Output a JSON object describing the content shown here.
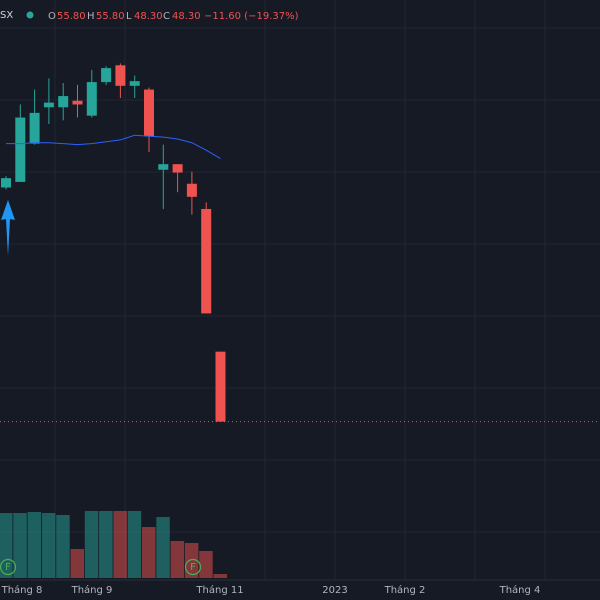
{
  "header": {
    "symbol": "SX",
    "o_label": "O",
    "o": "55.80",
    "h_label": "H",
    "h": "55.80",
    "l_label": "L",
    "l": "48.30",
    "c_label": "C",
    "c": "48.30",
    "change": "−11.60 (−19.37%)"
  },
  "chart_data": {
    "type": "candlestick",
    "open": [
      73.4,
      74.0,
      78.1,
      82.0,
      82.0,
      82.7,
      81.1,
      84.7,
      86.5,
      84.3,
      83.9,
      75.3,
      75.9,
      73.8,
      71.1,
      55.8
    ],
    "high": [
      74.6,
      82.3,
      83.9,
      85.1,
      84.6,
      84.4,
      86.0,
      86.4,
      86.7,
      85.4,
      84.1,
      78.0,
      75.9,
      75.1,
      71.8,
      55.8
    ],
    "low": [
      73.2,
      74.0,
      78.0,
      80.2,
      80.6,
      80.9,
      80.9,
      84.4,
      83.0,
      83.0,
      77.2,
      71.1,
      72.9,
      70.5,
      59.9,
      48.3
    ],
    "close": [
      74.4,
      80.9,
      81.4,
      82.5,
      83.2,
      82.3,
      84.7,
      86.2,
      84.3,
      84.8,
      78.9,
      75.9,
      75.0,
      72.4,
      59.9,
      48.3
    ],
    "ma": [
      78.1,
      78.1,
      78.2,
      78.2,
      78.1,
      78.0,
      78.1,
      78.3,
      78.5,
      79.0,
      78.9,
      78.8,
      78.6,
      78.2,
      77.4,
      76.5
    ],
    "volume": [
      65,
      65,
      66,
      65,
      63,
      29,
      67,
      67,
      67,
      67,
      51,
      61,
      37,
      35,
      27,
      4
    ],
    "ylim": [
      39.9,
      93.5
    ],
    "volume_lim": [
      0,
      80
    ],
    "up_color": "#26a69a",
    "down_color": "#ef5350",
    "ma_color": "#2962ff",
    "xlabels": [
      "Tháng 8",
      "Tháng 9",
      "Tháng 11",
      "2023",
      "Tháng 2",
      "Tháng 4"
    ],
    "markers": [
      "F",
      "F"
    ]
  }
}
